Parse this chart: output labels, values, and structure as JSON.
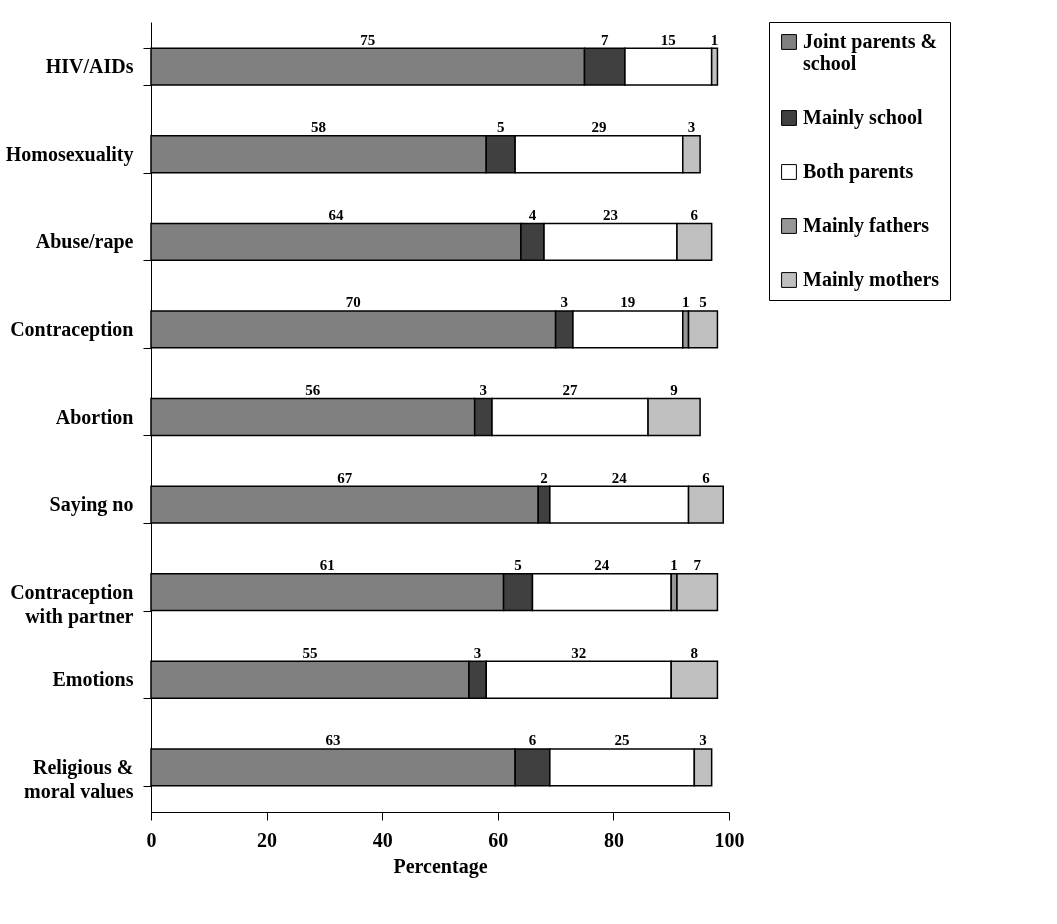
{
  "chart_data": {
    "type": "bar",
    "orientation": "horizontal",
    "stacked": true,
    "xlabel": "Percentage",
    "categories": [
      "HIV/AIDs",
      "Homosexuality",
      "Abuse/rape",
      "Contraception",
      "Abortion",
      "Saying no",
      "Contraception with partner",
      "Emotions",
      "Religious & moral values"
    ],
    "series": [
      {
        "name": "Joint parents & school",
        "color": "#808080",
        "values": [
          75,
          58,
          64,
          70,
          56,
          67,
          61,
          55,
          63
        ]
      },
      {
        "name": "Mainly school",
        "color": "#404040",
        "values": [
          7,
          5,
          4,
          3,
          3,
          2,
          5,
          3,
          6
        ]
      },
      {
        "name": "Both parents",
        "color": "#ffffff",
        "values": [
          15,
          29,
          23,
          19,
          27,
          24,
          24,
          32,
          25
        ]
      },
      {
        "name": "Mainly fathers",
        "color": "#969696",
        "values": [
          null,
          null,
          null,
          1,
          null,
          null,
          1,
          null,
          null
        ]
      },
      {
        "name": "Mainly mothers",
        "color": "#c0c0c0",
        "values": [
          1,
          3,
          6,
          5,
          9,
          6,
          7,
          8,
          3
        ]
      }
    ],
    "xlim": [
      0,
      100
    ],
    "xticks": [
      0,
      20,
      40,
      60,
      80,
      100
    ],
    "grid": false,
    "legend": "right",
    "data_labels": true
  }
}
